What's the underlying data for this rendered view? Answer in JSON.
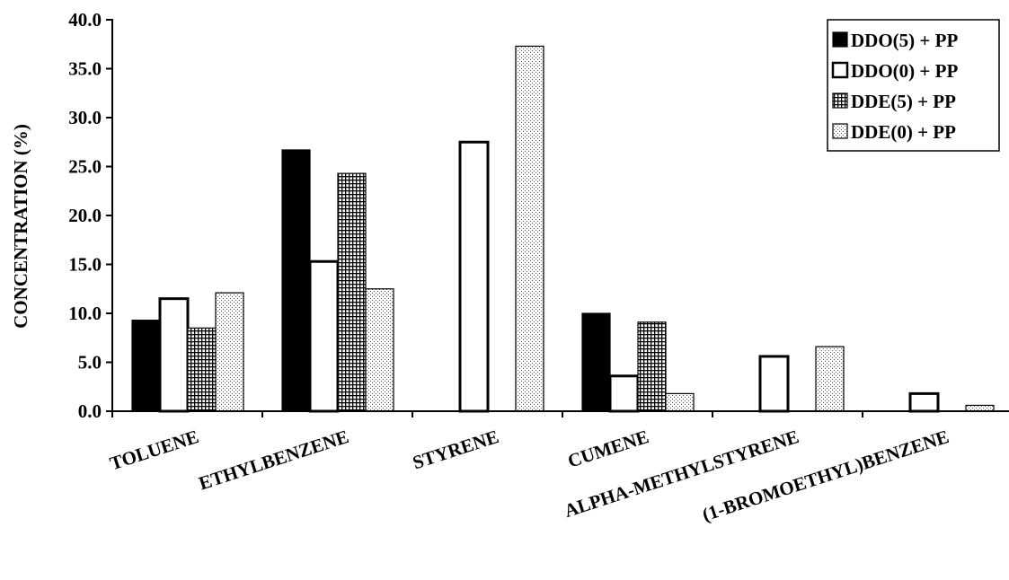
{
  "chart_data": {
    "type": "bar",
    "title": "",
    "xlabel": "",
    "ylabel": "CONCENTRATION (%)",
    "ylim": [
      0,
      40
    ],
    "ytick_step": 5,
    "ytick_decimals": 1,
    "grid": false,
    "legend_position": "top-right",
    "categories": [
      "TOLUENE",
      "ETHYLBENZENE",
      "STYRENE",
      "CUMENE",
      "ALPHA-METHYLSTYRENE",
      "(1-BROMOETHYL)BENZENE"
    ],
    "series": [
      {
        "name": "DDO(5) + PP",
        "fill": "solid-black",
        "values": [
          9.3,
          26.7,
          0.0,
          10.0,
          0.0,
          0.0
        ]
      },
      {
        "name": "DDO(0) + PP",
        "fill": "hollow",
        "values": [
          11.5,
          15.3,
          27.5,
          3.6,
          5.6,
          1.8
        ]
      },
      {
        "name": "DDE(5) + PP",
        "fill": "grid",
        "values": [
          8.5,
          24.3,
          0.0,
          9.1,
          0.0,
          0.0
        ]
      },
      {
        "name": "DDE(0) + PP",
        "fill": "dots",
        "values": [
          12.1,
          12.5,
          37.3,
          1.8,
          6.6,
          0.6
        ]
      }
    ]
  }
}
